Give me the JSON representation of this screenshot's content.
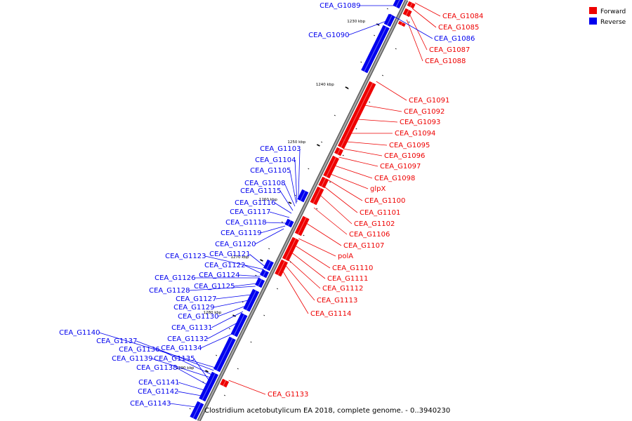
{
  "colors": {
    "forward": "#ee0000",
    "reverse": "#0000ee",
    "axis": "#808080",
    "tick": "#000000"
  },
  "legend": {
    "forward": "Forward",
    "reverse": "Reverse"
  },
  "caption": "Clostridium acetobutylicum EA 2018, complete genome. - 0..3940230",
  "ticks": [
    "1230 kbp",
    "1240 kbp",
    "1250 kbp",
    "1260 kbp",
    "1270 kbp",
    "1280 kbp",
    "1290 kbp"
  ],
  "forward_labels": [
    "CEA_G1084",
    "CEA_G1085",
    "CEA_G1087",
    "CEA_G1088",
    "CEA_G1091",
    "CEA_G1092",
    "CEA_G1093",
    "CEA_G1094",
    "CEA_G1095",
    "CEA_G1096",
    "CEA_G1097",
    "CEA_G1098",
    "glpX",
    "CEA_G1100",
    "CEA_G1101",
    "CEA_G1102",
    "CEA_G1106",
    "CEA_G1107",
    "polA",
    "CEA_G1110",
    "CEA_G1111",
    "CEA_G1112",
    "CEA_G1113",
    "CEA_G1114",
    "CEA_G1133"
  ],
  "reverse_labels": [
    "CEA_G1089",
    "CEA_G1090",
    "CEA_G1086",
    "CEA_G1103",
    "CEA_G1104",
    "CEA_G1105",
    "CEA_G1108",
    "CEA_G1115",
    "CEA_G1116",
    "CEA_G1117",
    "CEA_G1118",
    "CEA_G1119",
    "CEA_G1120",
    "CEA_G1121",
    "CEA_G1123",
    "CEA_G1122",
    "CEA_G1124",
    "CEA_G1126",
    "CEA_G1125",
    "CEA_G1128",
    "CEA_G1127",
    "CEA_G1129",
    "CEA_G1130",
    "CEA_G1131",
    "CEA_G1132",
    "CEA_G1134",
    "CEA_G1140",
    "CEA_G1137",
    "CEA_G1136",
    "CEA_G1139",
    "CEA_G1135",
    "CEA_G1138",
    "CEA_G1141",
    "CEA_G1142",
    "CEA_G1143"
  ]
}
